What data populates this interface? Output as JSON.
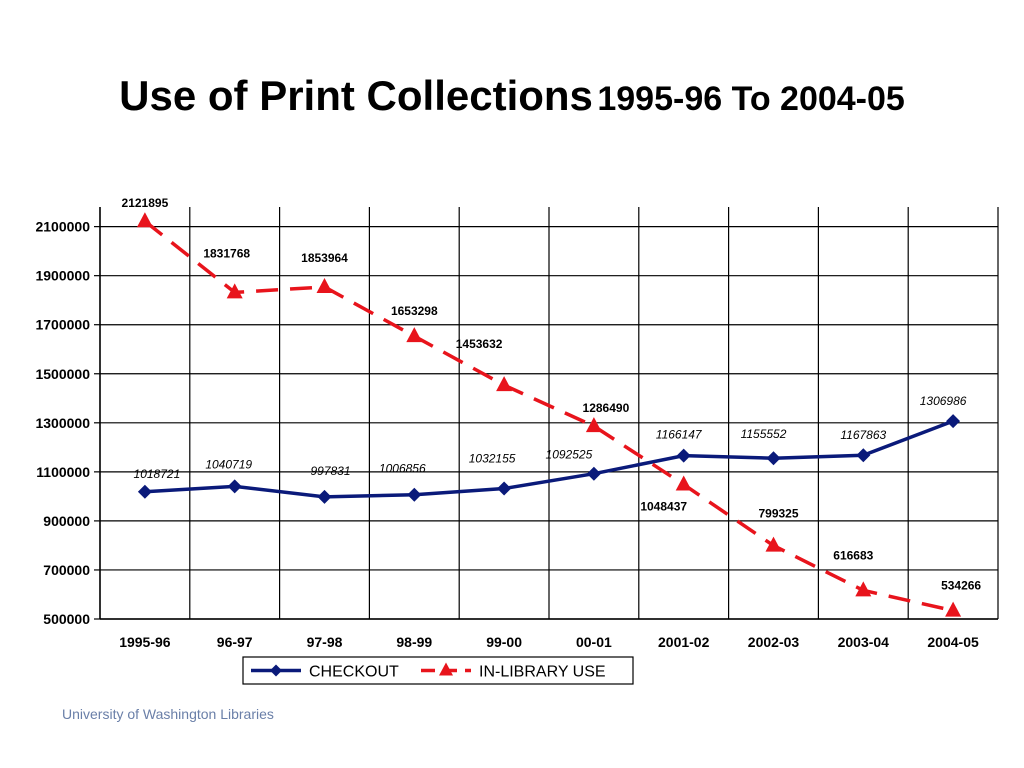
{
  "slide": {
    "title_main": "Use of Print Collections",
    "title_sub": "1995-96 To 2004-05",
    "footer": "University of Washington Libraries"
  },
  "chart_data": {
    "type": "line",
    "categories": [
      "1995-96",
      "96-97",
      "97-98",
      "98-99",
      "99-00",
      "00-01",
      "2001-02",
      "2002-03",
      "2003-04",
      "2004-05"
    ],
    "ylim": [
      500000,
      2180000
    ],
    "yticks": [
      500000,
      700000,
      900000,
      1100000,
      1300000,
      1500000,
      1700000,
      1900000,
      2100000
    ],
    "grid": true,
    "legend": "bottom",
    "series": [
      {
        "name": "CHECKOUT",
        "color": "#0a1a7a",
        "marker": "diamond",
        "line": "solid",
        "label_style": "italic",
        "values": [
          1018721,
          1040719,
          997831,
          1006856,
          1032155,
          1092525,
          1166147,
          1155552,
          1167863,
          1306986
        ]
      },
      {
        "name": "IN-LIBRARY USE",
        "color": "#e8141c",
        "marker": "triangle",
        "line": "dashed",
        "label_style": "bold",
        "values": [
          2121895,
          1831768,
          1853964,
          1653298,
          1453632,
          1286490,
          1048437,
          799325,
          616683,
          534266
        ]
      }
    ]
  }
}
